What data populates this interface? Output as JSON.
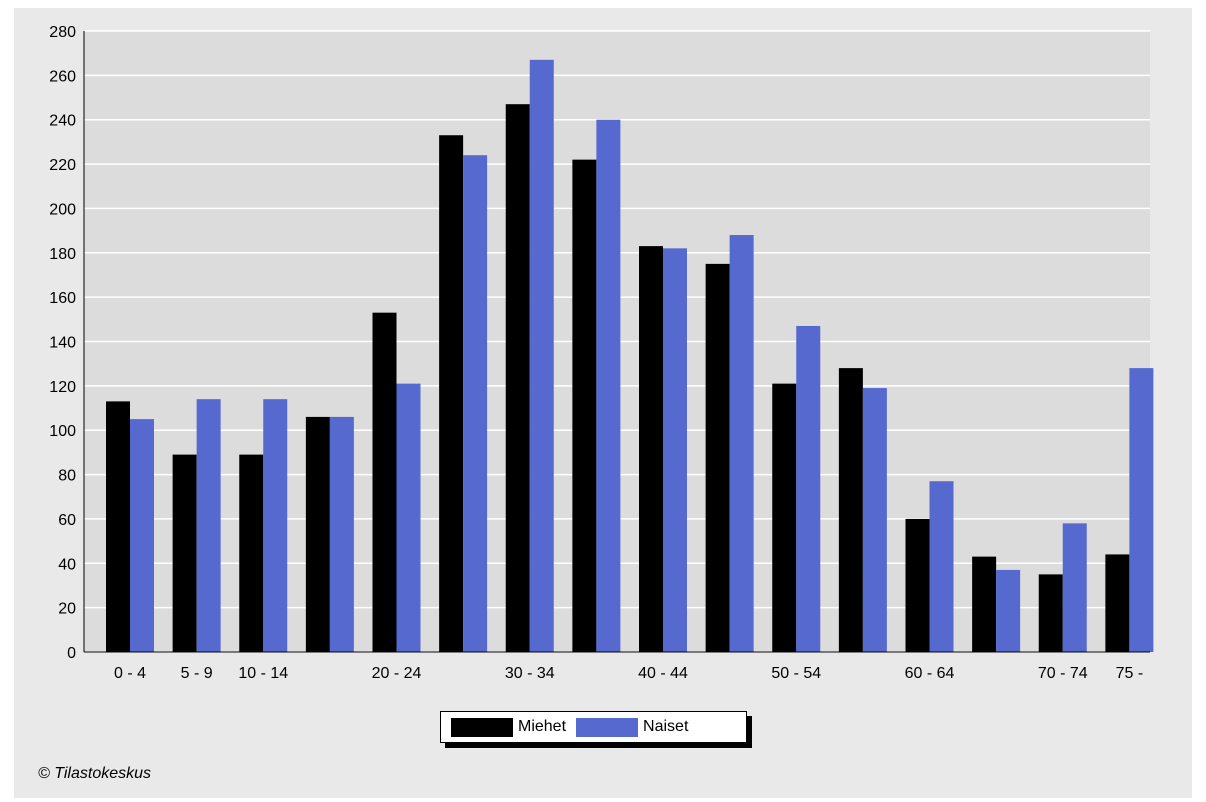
{
  "chart_data": {
    "type": "bar",
    "title": "",
    "xlabel": "",
    "ylabel": "",
    "ylim": [
      0,
      280
    ],
    "yticks": [
      0,
      20,
      40,
      60,
      80,
      100,
      120,
      140,
      160,
      180,
      200,
      220,
      240,
      260,
      280
    ],
    "grid": true,
    "legend_position": "bottom",
    "categories": [
      "0 - 4",
      "5 - 9",
      "10 - 14",
      "15 - 19",
      "20 - 24",
      "25 - 29",
      "30 - 34",
      "35 - 39",
      "40 - 44",
      "45 - 49",
      "50 - 54",
      "55 - 59",
      "60 - 64",
      "65 - 69",
      "70 - 74",
      "75 -"
    ],
    "visible_tick_labels": [
      "0 - 4",
      "5 - 9",
      "10 - 14",
      "20 - 24",
      "30 - 34",
      "40 - 44",
      "50 - 54",
      "60 - 64",
      "70 - 74",
      "75 -"
    ],
    "series": [
      {
        "name": "Miehet",
        "color": "#000000",
        "values": [
          113,
          89,
          89,
          106,
          153,
          233,
          247,
          222,
          183,
          175,
          121,
          128,
          60,
          43,
          35,
          44
        ]
      },
      {
        "name": "Naiset",
        "color": "#5569cf",
        "values": [
          105,
          114,
          114,
          106,
          121,
          224,
          267,
          240,
          182,
          188,
          147,
          119,
          77,
          37,
          58,
          128
        ]
      }
    ]
  },
  "footer": {
    "credit": "© Tilastokeskus"
  }
}
